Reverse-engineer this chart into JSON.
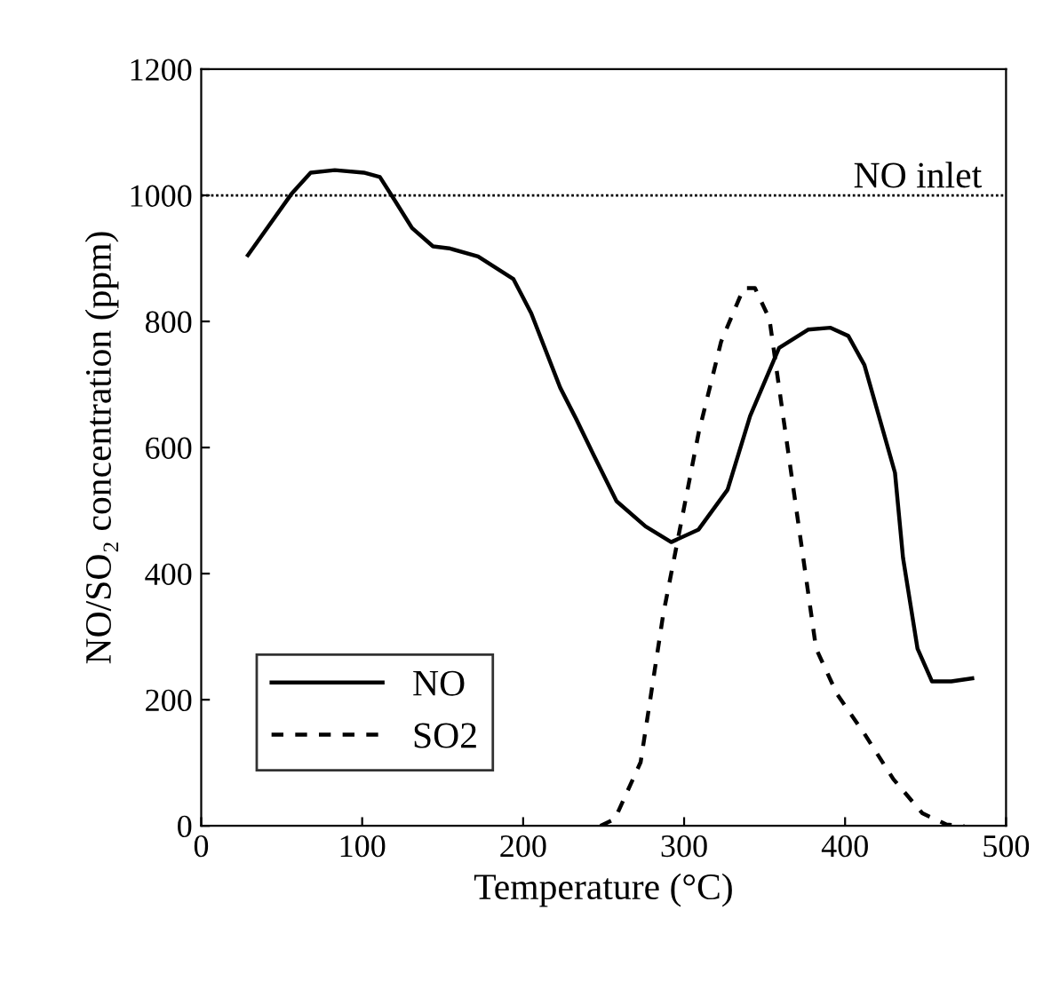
{
  "chart_data": {
    "type": "line",
    "xlabel": "Temperature (°C)",
    "ylabel": "NO/SO₂ concentration (ppm)",
    "xlim": [
      0,
      500
    ],
    "xticks": [
      0,
      100,
      200,
      300,
      400,
      500
    ],
    "ylim": [
      0,
      1200
    ],
    "yticks": [
      0,
      200,
      400,
      600,
      800,
      1000,
      1200
    ],
    "grid": false,
    "legend": "bottom left",
    "ref_lines": [
      {
        "axis": "y",
        "value": 1000,
        "label": "NO inlet",
        "color": "#000000",
        "line_style": "dotted"
      }
    ],
    "series": [
      {
        "name": "NO",
        "color": "#000000",
        "line_style": "solid",
        "x": [
          29,
          56,
          68,
          83,
          101,
          111,
          120,
          131,
          144,
          154,
          172,
          194,
          205,
          223,
          233,
          244,
          258,
          276,
          292,
          309,
          327,
          341,
          359,
          377,
          391,
          402,
          412,
          423,
          431,
          436,
          445,
          454,
          466,
          479
        ],
        "values": [
          905,
          1002,
          1036,
          1040,
          1036,
          1029,
          993,
          948,
          919,
          916,
          903,
          867,
          813,
          695,
          645,
          587,
          515,
          475,
          450,
          470,
          533,
          650,
          758,
          787,
          790,
          777,
          731,
          632,
          560,
          425,
          281,
          229,
          229,
          234
        ]
      },
      {
        "name": "SO2",
        "color": "#000000",
        "line_style": "dashed",
        "x": [
          248,
          257,
          273,
          287,
          298,
          309,
          323,
          337,
          344,
          353,
          362,
          373,
          382,
          395,
          412,
          430,
          448,
          463,
          474
        ],
        "values": [
          0,
          11,
          101,
          335,
          479,
          623,
          768,
          853,
          853,
          804,
          641,
          443,
          281,
          209,
          146,
          74,
          20,
          2,
          0
        ]
      }
    ]
  }
}
